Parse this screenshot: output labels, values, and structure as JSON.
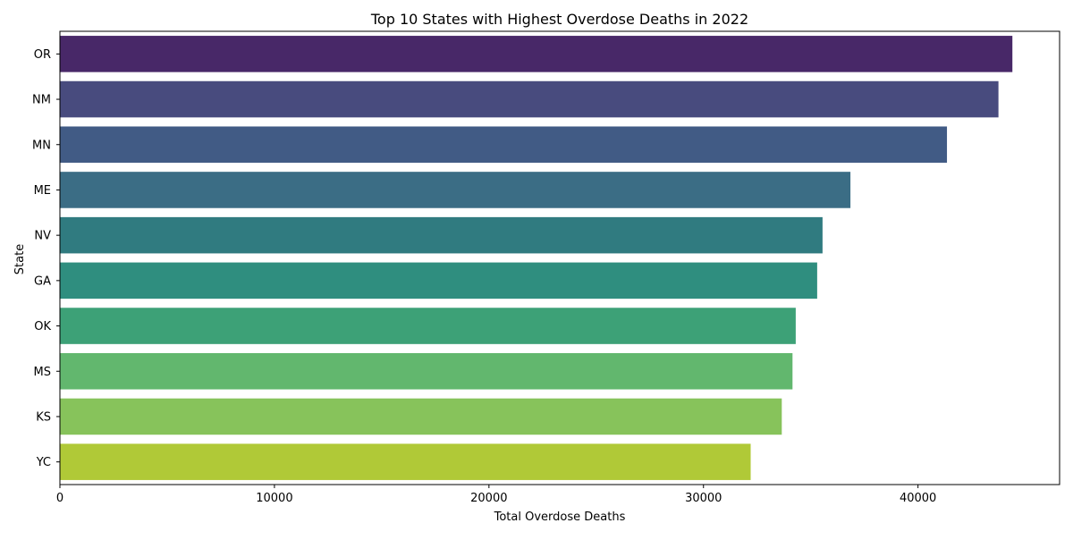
{
  "chart_data": {
    "type": "bar",
    "orientation": "horizontal",
    "title": "Top 10 States with Highest Overdose Deaths in 2022",
    "xlabel": "Total Overdose Deaths",
    "ylabel": "State",
    "categories": [
      "OR",
      "NM",
      "MN",
      "ME",
      "NV",
      "GA",
      "OK",
      "MS",
      "KS",
      "YC"
    ],
    "values": [
      44400,
      43750,
      41350,
      36850,
      35550,
      35300,
      34300,
      34150,
      33650,
      32200
    ],
    "xlim": [
      0,
      46600
    ],
    "xticks": [
      0,
      10000,
      20000,
      30000,
      40000
    ],
    "xtick_labels": [
      "0",
      "10000",
      "20000",
      "30000",
      "40000"
    ],
    "grid": false,
    "legend": "none",
    "colors": [
      "#482868",
      "#484b7e",
      "#415b85",
      "#3b6d85",
      "#307b80",
      "#2f8e7f",
      "#3da177",
      "#62b76e",
      "#87c35b",
      "#b0c937"
    ],
    "axis_color": "#000000",
    "background": "#ffffff"
  }
}
